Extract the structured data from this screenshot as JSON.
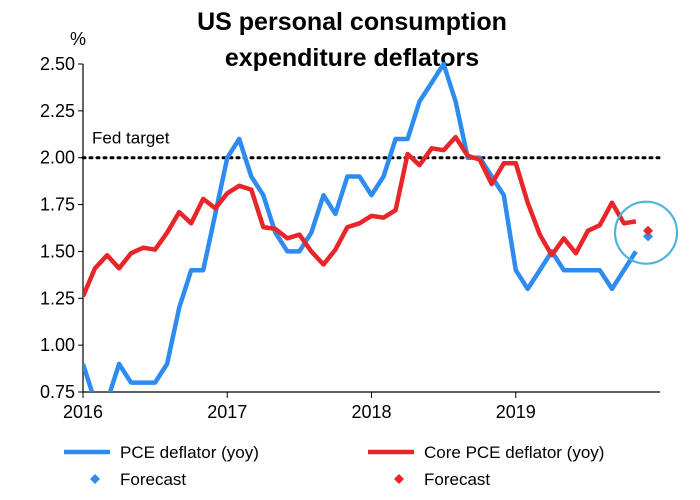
{
  "chart_data": {
    "type": "line",
    "title_lines": [
      "US personal consumption",
      "expenditure deflators"
    ],
    "y_unit": "%",
    "ylim": [
      0.75,
      2.5
    ],
    "y_ticks": [
      "2.50",
      "2.25",
      "2.00",
      "1.75",
      "1.50",
      "1.25",
      "1.00",
      "0.75"
    ],
    "y_tick_values": [
      2.5,
      2.25,
      2.0,
      1.75,
      1.5,
      1.25,
      1.0,
      0.75
    ],
    "x_ticks": [
      "2016",
      "2017",
      "2018",
      "2019"
    ],
    "x_tick_values": [
      2016,
      2017,
      2018,
      2019
    ],
    "x_domain": [
      2016,
      2020
    ],
    "reference_line": {
      "label": "Fed target",
      "value": 2.0,
      "style": "dotted",
      "color": "#000000"
    },
    "series": [
      {
        "name": "PCE deflator (yoy)",
        "color": "#2E8BEF",
        "x": [
          2016.0,
          2016.083,
          2016.167,
          2016.25,
          2016.333,
          2016.417,
          2016.5,
          2016.583,
          2016.667,
          2016.75,
          2016.833,
          2016.917,
          2017.0,
          2017.083,
          2017.167,
          2017.25,
          2017.333,
          2017.417,
          2017.5,
          2017.583,
          2017.667,
          2017.75,
          2017.833,
          2017.917,
          2018.0,
          2018.083,
          2018.167,
          2018.25,
          2018.333,
          2018.417,
          2018.5,
          2018.583,
          2018.667,
          2018.75,
          2018.833,
          2018.917,
          2019.0,
          2019.083,
          2019.167,
          2019.25,
          2019.333,
          2019.417,
          2019.5,
          2019.583,
          2019.667,
          2019.75,
          2019.833
        ],
        "values": [
          0.9,
          0.7,
          0.7,
          0.9,
          0.8,
          0.8,
          0.8,
          0.9,
          1.2,
          1.4,
          1.4,
          1.7,
          2.0,
          2.1,
          1.9,
          1.8,
          1.6,
          1.5,
          1.5,
          1.6,
          1.8,
          1.7,
          1.9,
          1.9,
          1.8,
          1.9,
          2.1,
          2.1,
          2.3,
          2.4,
          2.5,
          2.3,
          2.0,
          2.0,
          1.9,
          1.8,
          1.4,
          1.3,
          1.4,
          1.5,
          1.4,
          1.4,
          1.4,
          1.4,
          1.3,
          1.4,
          1.5
        ]
      },
      {
        "name": "Core PCE deflator (yoy)",
        "color": "#E8262A",
        "x": [
          2016.0,
          2016.083,
          2016.167,
          2016.25,
          2016.333,
          2016.417,
          2016.5,
          2016.583,
          2016.667,
          2016.75,
          2016.833,
          2016.917,
          2017.0,
          2017.083,
          2017.167,
          2017.25,
          2017.333,
          2017.417,
          2017.5,
          2017.583,
          2017.667,
          2017.75,
          2017.833,
          2017.917,
          2018.0,
          2018.083,
          2018.167,
          2018.25,
          2018.333,
          2018.417,
          2018.5,
          2018.583,
          2018.667,
          2018.75,
          2018.833,
          2018.917,
          2019.0,
          2019.083,
          2019.167,
          2019.25,
          2019.333,
          2019.417,
          2019.5,
          2019.583,
          2019.667,
          2019.75,
          2019.833
        ],
        "values": [
          1.26,
          1.41,
          1.48,
          1.41,
          1.49,
          1.52,
          1.51,
          1.6,
          1.71,
          1.65,
          1.78,
          1.73,
          1.81,
          1.85,
          1.83,
          1.63,
          1.62,
          1.57,
          1.59,
          1.5,
          1.43,
          1.51,
          1.63,
          1.65,
          1.69,
          1.68,
          1.72,
          2.02,
          1.96,
          2.05,
          2.04,
          2.11,
          2.01,
          1.99,
          1.86,
          1.97,
          1.97,
          1.76,
          1.59,
          1.48,
          1.57,
          1.49,
          1.61,
          1.64,
          1.76,
          1.65,
          1.66
        ]
      },
      {
        "name": "Forecast",
        "type": "scatter",
        "marker": "diamond",
        "color": "#2E8BEF",
        "x": [
          2019.917
        ],
        "values": [
          1.58
        ]
      },
      {
        "name": "Forecast",
        "type": "scatter",
        "marker": "diamond",
        "color": "#E8262A",
        "x": [
          2019.917
        ],
        "values": [
          1.61
        ]
      }
    ],
    "highlight": {
      "shape": "circle",
      "color": "#4FB3DE",
      "center_x": 2019.917,
      "center_y": 1.6
    },
    "legend": {
      "position": "bottom",
      "items": [
        {
          "label": "PCE deflator (yoy)",
          "kind": "line",
          "color": "#2E8BEF"
        },
        {
          "label": "Core PCE deflator (yoy)",
          "kind": "line",
          "color": "#E8262A"
        },
        {
          "label": "Forecast",
          "kind": "diamond",
          "color": "#2E8BEF"
        },
        {
          "label": "Forecast",
          "kind": "diamond",
          "color": "#E8262A"
        }
      ]
    }
  }
}
